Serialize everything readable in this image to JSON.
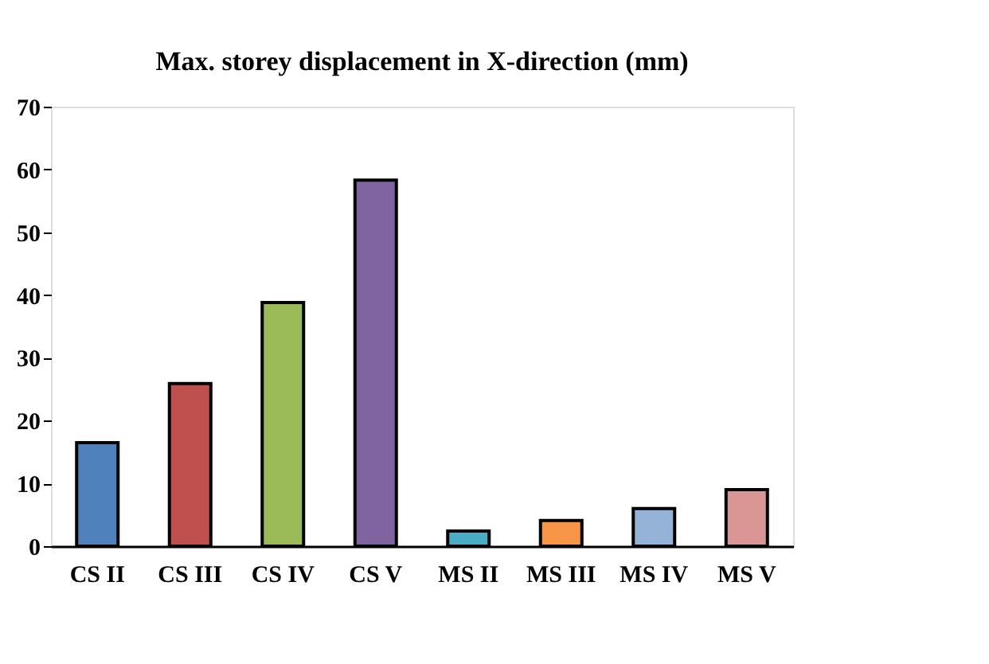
{
  "chart_data": {
    "type": "bar",
    "title": "Max. storey displacement in X-direction (mm)",
    "categories": [
      "CS II",
      "CS III",
      "CS IV",
      "CS V",
      "MS II",
      "MS III",
      "MS IV",
      "MS V"
    ],
    "values": [
      16.5,
      25.9,
      38.8,
      58.3,
      2.4,
      4.1,
      6.0,
      9.0
    ],
    "colors": [
      "#4f81bd",
      "#c0504d",
      "#9bbb59",
      "#8064a2",
      "#4bacc6",
      "#f79646",
      "#95b3d7",
      "#d99694"
    ],
    "ylim": [
      0,
      70
    ],
    "yticks": [
      0,
      10,
      20,
      30,
      40,
      50,
      60,
      70
    ],
    "grid": false,
    "legend": false
  }
}
